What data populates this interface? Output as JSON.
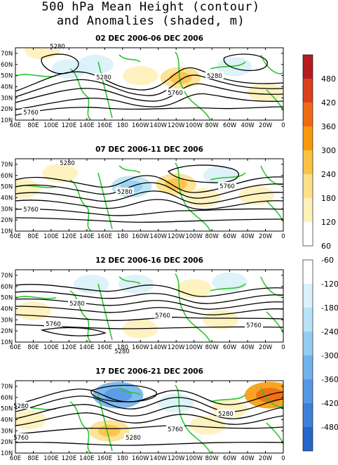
{
  "title_line1": "500 hPa Mean Height (contour)",
  "title_line2": "and Anomalies (shaded, m)",
  "chart_data": {
    "type": "heatmap",
    "title": "500 hPa Mean Height (contour) and Anomalies (shaded, m)",
    "x_ticks": [
      "60E",
      "80E",
      "100E",
      "120E",
      "140E",
      "160E",
      "180",
      "160W",
      "140W",
      "120W",
      "100W",
      "80W",
      "60W",
      "40W",
      "20W",
      "0"
    ],
    "y_ticks": [
      "10N",
      "20N",
      "30N",
      "40N",
      "50N",
      "60N",
      "70N"
    ],
    "panels": [
      {
        "subtitle": "02 DEC 2006-06 DEC 2006",
        "contour_labels": [
          "5280",
          "5280",
          "5280",
          "5760",
          "5760"
        ],
        "anomalies": [
          {
            "lon": 90,
            "lat": 73,
            "value": 120
          },
          {
            "lon": 120,
            "lat": 56,
            "value": -120
          },
          {
            "lon": 150,
            "lat": 60,
            "value": -120
          },
          {
            "lon": 200,
            "lat": 50,
            "value": 120
          },
          {
            "lon": 245,
            "lat": 48,
            "value": 180
          },
          {
            "lon": 305,
            "lat": 58,
            "value": -120
          },
          {
            "lon": 340,
            "lat": 35,
            "value": 120
          }
        ]
      },
      {
        "subtitle": "07 DEC 2006-11 DEC 2006",
        "contour_labels": [
          "5280",
          "5280",
          "5760",
          "5760"
        ],
        "anomalies": [
          {
            "lon": 68,
            "lat": 48,
            "value": 120
          },
          {
            "lon": 110,
            "lat": 62,
            "value": 120
          },
          {
            "lon": 190,
            "lat": 50,
            "value": -180
          },
          {
            "lon": 240,
            "lat": 52,
            "value": 180
          },
          {
            "lon": 290,
            "lat": 60,
            "value": -120
          },
          {
            "lon": 270,
            "lat": 40,
            "value": 120
          },
          {
            "lon": 330,
            "lat": 42,
            "value": 120
          }
        ]
      },
      {
        "subtitle": "12 DEC 2006-16 DEC 2006",
        "contour_labels": [
          "5280",
          "5280",
          "5760",
          "5760",
          "5760"
        ],
        "anomalies": [
          {
            "lon": 80,
            "lat": 38,
            "value": 120
          },
          {
            "lon": 145,
            "lat": 62,
            "value": -120
          },
          {
            "lon": 195,
            "lat": 62,
            "value": -120
          },
          {
            "lon": 260,
            "lat": 58,
            "value": 120
          },
          {
            "lon": 300,
            "lat": 64,
            "value": -120
          },
          {
            "lon": 200,
            "lat": 22,
            "value": 120
          },
          {
            "lon": 290,
            "lat": 30,
            "value": 120
          }
        ]
      },
      {
        "subtitle": "17 DEC 2006-21 DEC 2006",
        "contour_labels": [
          "5280",
          "5280",
          "5280",
          "5760",
          "5760"
        ],
        "anomalies": [
          {
            "lon": 175,
            "lat": 62,
            "value": -300
          },
          {
            "lon": 165,
            "lat": 30,
            "value": 180
          },
          {
            "lon": 240,
            "lat": 55,
            "value": -120
          },
          {
            "lon": 300,
            "lat": 50,
            "value": 120
          },
          {
            "lon": 345,
            "lat": 62,
            "value": 300
          },
          {
            "lon": 75,
            "lat": 40,
            "value": 120
          },
          {
            "lon": 275,
            "lat": 35,
            "value": 120
          }
        ]
      }
    ],
    "colorbar_positive": {
      "labels": [
        "480",
        "420",
        "360",
        "300",
        "240",
        "180",
        "120",
        "60"
      ],
      "colors": [
        "#b31d1d",
        "#d8401e",
        "#ef6a15",
        "#f79a0c",
        "#fbc044",
        "#fde089",
        "#fff1ba",
        "#ffffff"
      ]
    },
    "colorbar_negative": {
      "labels": [
        "-60",
        "-120",
        "-180",
        "-240",
        "-300",
        "-360",
        "-420",
        "-480"
      ],
      "colors": [
        "#ffffff",
        "#d9f1f8",
        "#b8e3f5",
        "#94cdf1",
        "#72b3ec",
        "#5698e3",
        "#3e7fd8",
        "#2766cb"
      ]
    },
    "contour_color": "#000000",
    "coastline_color": "#2fc52f"
  }
}
